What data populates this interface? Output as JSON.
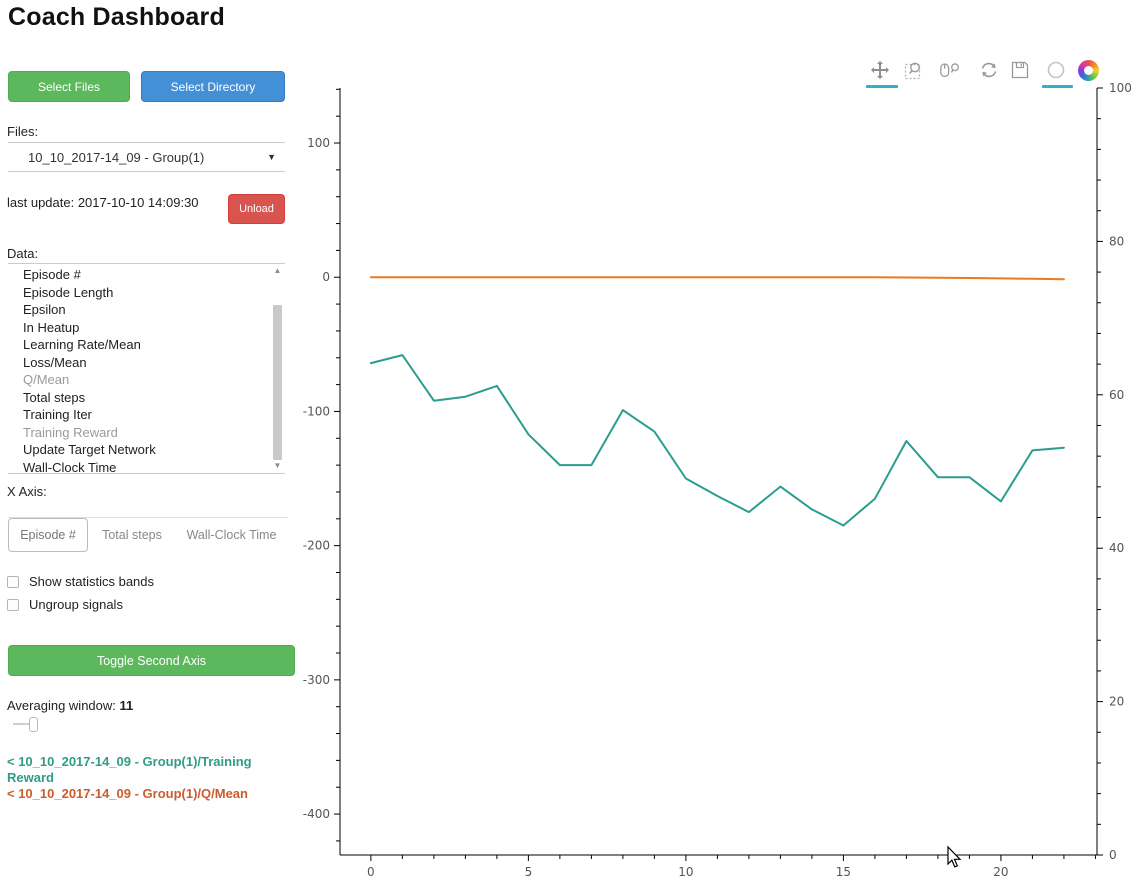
{
  "app": {
    "title": "Coach Dashboard"
  },
  "file_controls": {
    "select_files_label": "Select Files",
    "select_directory_label": "Select Directory"
  },
  "files": {
    "label": "Files:",
    "selected_value": "10_10_2017-14_09 - Group(1)",
    "dropdown_icon": "chevron-down"
  },
  "status": {
    "last_update": "last update: 2017-10-10 14:09:30",
    "unload_label": "Unload"
  },
  "data_list": {
    "label": "Data:",
    "items": [
      {
        "label": "Episode #",
        "dimmed": false
      },
      {
        "label": "Episode Length",
        "dimmed": false
      },
      {
        "label": "Epsilon",
        "dimmed": false
      },
      {
        "label": "In Heatup",
        "dimmed": false
      },
      {
        "label": "Learning Rate/Mean",
        "dimmed": false
      },
      {
        "label": "Loss/Mean",
        "dimmed": false
      },
      {
        "label": "Q/Mean",
        "dimmed": true
      },
      {
        "label": "Total steps",
        "dimmed": false
      },
      {
        "label": "Training Iter",
        "dimmed": false
      },
      {
        "label": "Training Reward",
        "dimmed": true
      },
      {
        "label": "Update Target Network",
        "dimmed": false
      },
      {
        "label": "Wall-Clock Time",
        "dimmed": false
      }
    ]
  },
  "x_axis_control": {
    "label": "X Axis:",
    "options": [
      "Episode #",
      "Total steps",
      "Wall-Clock Time"
    ],
    "selected": "Episode #"
  },
  "toggles": {
    "show_bands_label": "Show statistics bands",
    "show_bands_checked": false,
    "ungroup_label": "Ungroup signals",
    "ungroup_checked": false
  },
  "second_axis_button_label": "Toggle Second Axis",
  "averaging": {
    "label": "Averaging window:",
    "value": "11"
  },
  "legend": [
    {
      "label": "< 10_10_2017-14_09 - Group(1)/Training Reward",
      "color": "#2f9c86"
    },
    {
      "label": "< 10_10_2017-14_09 - Group(1)/Q/Mean",
      "color": "#cc5c2b"
    }
  ],
  "toolbar": {
    "icons": [
      "pan-icon",
      "box-zoom-icon",
      "wheel-zoom-icon",
      "reset-icon",
      "save-icon",
      "hover-icon",
      "bokeh-logo"
    ],
    "active_tools": [
      "pan",
      "hover"
    ],
    "active_underline_color": "#2eb0c5",
    "icon_color": "#909090"
  },
  "chart_data": {
    "type": "line",
    "x": [
      0,
      1,
      2,
      3,
      4,
      5,
      6,
      7,
      8,
      9,
      10,
      11,
      12,
      13,
      14,
      15,
      16,
      17,
      18,
      19,
      20,
      21,
      22
    ],
    "series": [
      {
        "name": "10_10_2017-14_09 - Group(1)/Training Reward",
        "color": "#2a9d8f",
        "axis": "left",
        "values": [
          -64,
          -58,
          -92,
          -89,
          -81,
          -117,
          -140,
          -140,
          -99,
          -115,
          -150,
          -163,
          -175,
          -156,
          -173,
          -185,
          -165,
          -122,
          -149,
          -149,
          -167,
          -129,
          -127
        ]
      },
      {
        "name": "10_10_2017-14_09 - Group(1)/Q/Mean",
        "color": "#ee7a1d",
        "axis": "left",
        "values": [
          0,
          0,
          0,
          0,
          0,
          0,
          0,
          0,
          0,
          0,
          0,
          0,
          0,
          0,
          0,
          0,
          0,
          -0.2,
          -0.4,
          -0.6,
          -0.9,
          -1.2,
          -1.5
        ]
      }
    ],
    "title": "",
    "xlabel": "",
    "ylabel": "",
    "x_range": [
      -0.98,
      23.05
    ],
    "y_left": {
      "range": [
        -430.5,
        141
      ],
      "major_ticks": [
        100,
        0,
        -100,
        -200,
        -300,
        -400
      ],
      "minor_step": 20
    },
    "y_right": {
      "range": [
        0,
        100
      ],
      "major_ticks": [
        0,
        20,
        40,
        60,
        80,
        100
      ],
      "minor_step": 4
    },
    "x_ticks": {
      "major": [
        0,
        5,
        10,
        15,
        20
      ],
      "minor_step": 1
    },
    "grid": false,
    "axis_color": "#000000",
    "tick_label_color": "#555555",
    "legend_position": "left-panel-bottom"
  }
}
